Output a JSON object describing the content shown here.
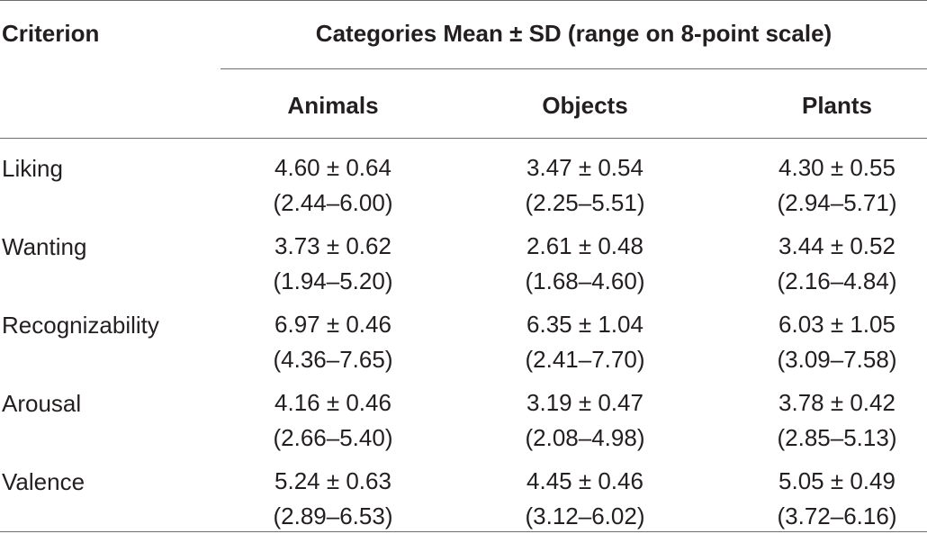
{
  "table": {
    "criterion_header": "Criterion",
    "group_header": "Categories Mean ± SD (range on 8-point scale)",
    "columns": [
      "Animals",
      "Objects",
      "Plants"
    ],
    "rows": [
      {
        "label": "Liking",
        "cells": [
          {
            "mean_sd": "4.60 ± 0.64",
            "range": "(2.44–6.00)"
          },
          {
            "mean_sd": "3.47 ± 0.54",
            "range": "(2.25–5.51)"
          },
          {
            "mean_sd": "4.30 ± 0.55",
            "range": "(2.94–5.71)"
          }
        ]
      },
      {
        "label": "Wanting",
        "cells": [
          {
            "mean_sd": "3.73 ± 0.62",
            "range": "(1.94–5.20)"
          },
          {
            "mean_sd": "2.61 ± 0.48",
            "range": "(1.68–4.60)"
          },
          {
            "mean_sd": "3.44 ± 0.52",
            "range": "(2.16–4.84)"
          }
        ]
      },
      {
        "label": "Recognizability",
        "cells": [
          {
            "mean_sd": "6.97 ± 0.46",
            "range": "(4.36–7.65)"
          },
          {
            "mean_sd": "6.35 ± 1.04",
            "range": "(2.41–7.70)"
          },
          {
            "mean_sd": "6.03 ± 1.05",
            "range": "(3.09–7.58)"
          }
        ]
      },
      {
        "label": "Arousal",
        "cells": [
          {
            "mean_sd": "4.16 ± 0.46",
            "range": "(2.66–5.40)"
          },
          {
            "mean_sd": "3.19 ± 0.47",
            "range": "(2.08–4.98)"
          },
          {
            "mean_sd": "3.78 ± 0.42",
            "range": "(2.85–5.13)"
          }
        ]
      },
      {
        "label": "Valence",
        "cells": [
          {
            "mean_sd": "5.24 ± 0.63",
            "range": "(2.89–6.53)"
          },
          {
            "mean_sd": "4.45 ± 0.46",
            "range": "(3.12–6.02)"
          },
          {
            "mean_sd": "5.05 ± 0.49",
            "range": "(3.72–6.16)"
          }
        ]
      }
    ]
  }
}
